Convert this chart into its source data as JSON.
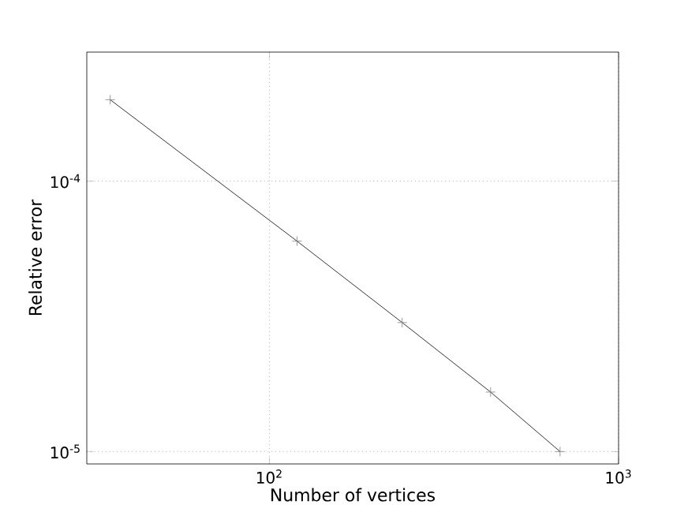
{
  "chart_data": {
    "type": "line",
    "xlabel": "Number of vertices",
    "ylabel": "Relative error",
    "log": "xy",
    "grid": true,
    "marker": "cross",
    "line_style": "solid",
    "x": [
      35,
      120,
      240,
      430,
      680
    ],
    "series": [
      {
        "color": "#000000",
        "values": [
          0.0002,
          6e-05,
          3e-05,
          1.66e-05,
          1e-05
        ]
      }
    ],
    "xlim": [
      30,
      1000
    ],
    "ylim": [
      9e-06,
      0.0003
    ],
    "xticks": [
      {
        "value": 100,
        "label": "10$^{2}$"
      },
      {
        "value": 1000,
        "label": "10$^{3}$"
      }
    ],
    "yticks": [
      {
        "value": 1e-05,
        "label": "10$^{-5}$"
      },
      {
        "value": 0.0001,
        "label": "10$^{-4}$"
      }
    ]
  }
}
